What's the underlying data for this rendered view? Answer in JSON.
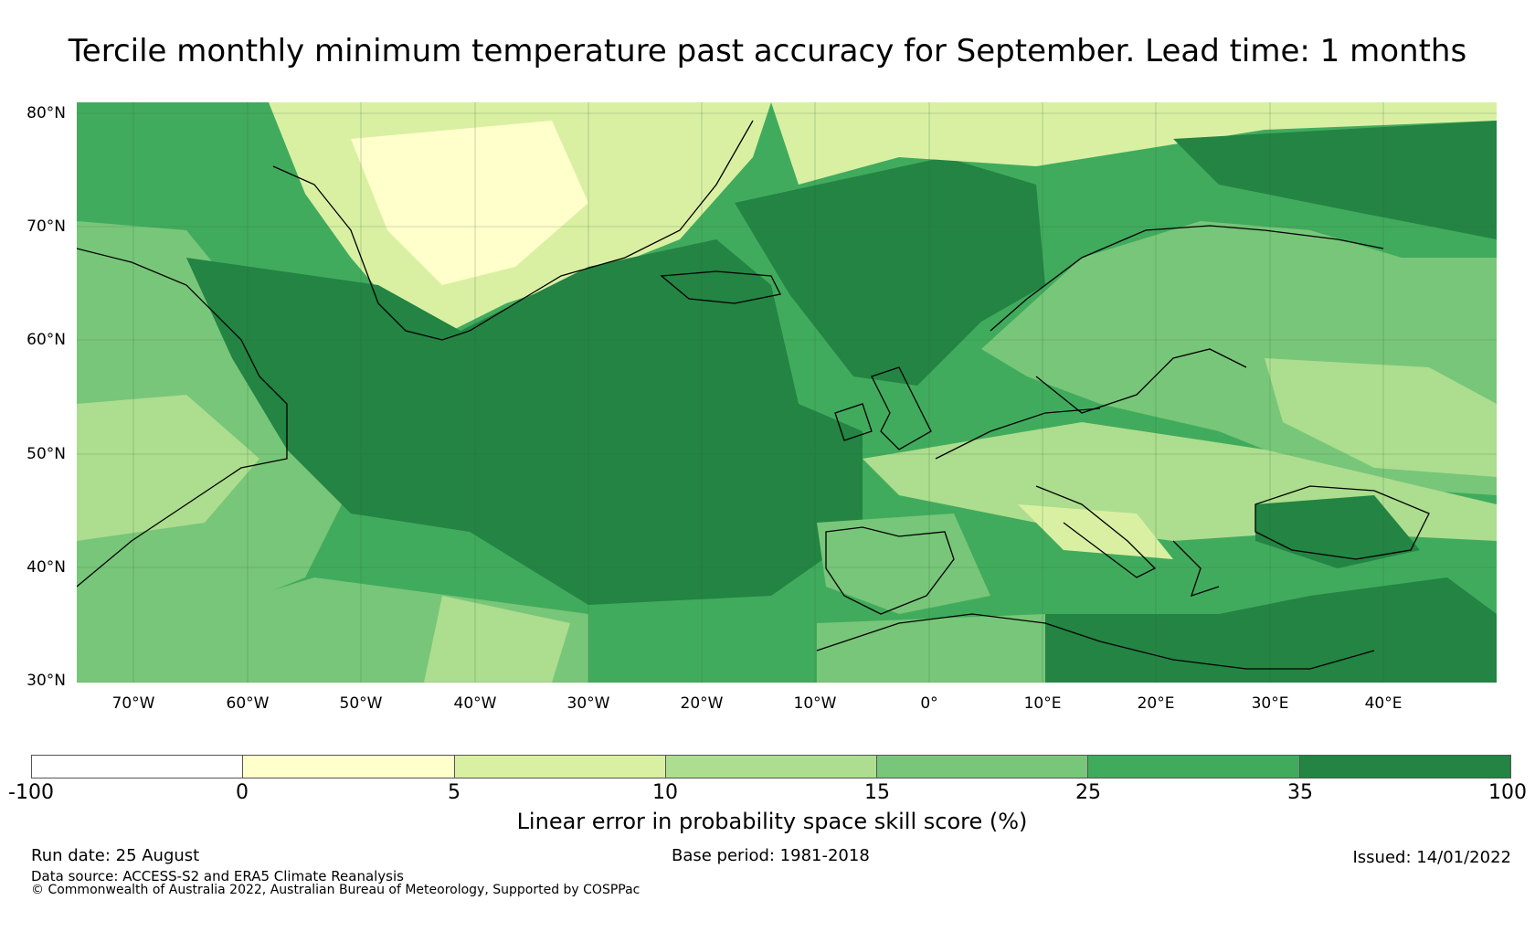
{
  "title": "Tercile monthly minimum temperature past accuracy for September. Lead time: 1 months",
  "map": {
    "latitude_labels": [
      "80°N",
      "70°N",
      "60°N",
      "50°N",
      "40°N",
      "30°N"
    ],
    "longitude_labels": [
      "70°W",
      "60°W",
      "50°W",
      "40°W",
      "30°W",
      "20°W",
      "10°W",
      "0°",
      "10°E",
      "20°E",
      "30°E",
      "40°E"
    ],
    "lat_range": [
      30,
      81
    ],
    "lon_range": [
      -75,
      50
    ]
  },
  "colorbar": {
    "ticks": [
      "-100",
      "0",
      "5",
      "10",
      "15",
      "25",
      "35",
      "100"
    ],
    "colors": [
      "#ffffff",
      "#ffffcc",
      "#d9f0a3",
      "#addd8e",
      "#78c679",
      "#41ab5d",
      "#238443"
    ],
    "label": "Linear error in probability space skill score (%)"
  },
  "footer": {
    "run_date": "Run date: 25 August",
    "base_period": "Base period: 1981-2018",
    "issued": "Issued: 14/01/2022",
    "data_source": "Data source: ACCESS-S2 and ERA5 Climate Reanalysis",
    "copyright": "© Commonwealth of Australia 2022, Australian Bureau of Meteorology, Supported by COSPPac"
  }
}
